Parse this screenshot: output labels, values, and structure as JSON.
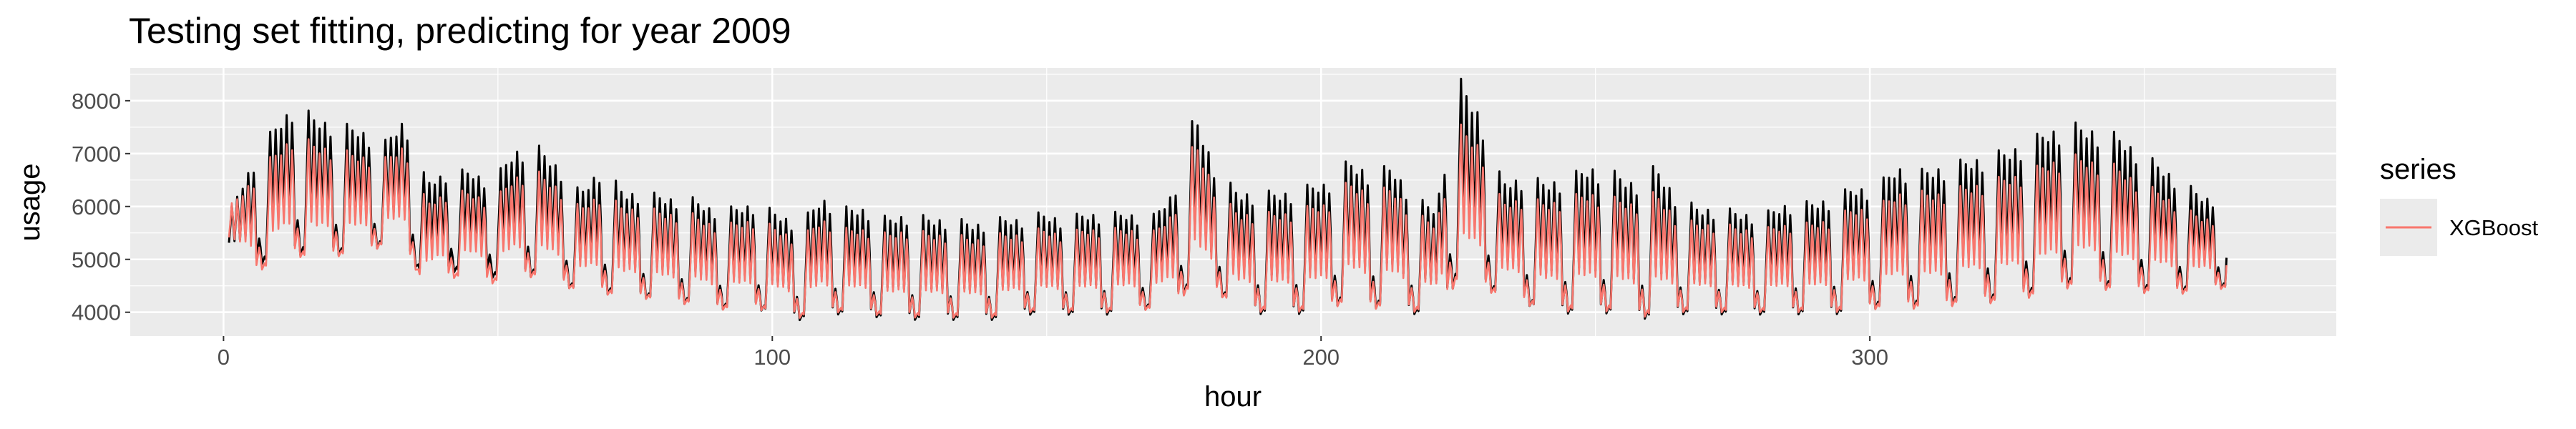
{
  "chart_data": {
    "type": "line",
    "title": "Testing set fitting, predicting for year 2009",
    "xlabel": "hour",
    "ylabel": "usage",
    "xlim": [
      -17,
      385
    ],
    "ylim": [
      3550,
      8620
    ],
    "x_ticks": [
      0,
      100,
      200,
      300
    ],
    "x_tick_labels": [
      "0",
      "100",
      "200",
      "300"
    ],
    "y_ticks": [
      4000,
      5000,
      6000,
      7000,
      8000
    ],
    "y_tick_labels": [
      "4000",
      "5000",
      "6000",
      "7000",
      "8000"
    ],
    "grid": true,
    "legend": {
      "title": "series",
      "placement": "right",
      "entries": [
        "XGBoost"
      ]
    },
    "series_x_range": [
      1,
      365
    ],
    "series": [
      {
        "role": "actual",
        "color": "#000000",
        "x_start": 1,
        "x_step": 4,
        "peaks": [
          5900,
          6800,
          7500,
          8000,
          7700,
          7600,
          7500,
          7200,
          7700,
          6500,
          6700,
          6700,
          6500,
          7100,
          7200,
          6800,
          6300,
          6800,
          6300,
          6300,
          6200,
          6200,
          6000,
          6000,
          6100,
          5900,
          5700,
          6200,
          6000,
          6000,
          5800,
          5900,
          5800,
          5800,
          5700,
          5800,
          5800,
          5900,
          5800,
          5900,
          5900,
          5900,
          5800,
          6300,
          7800,
          6700,
          6300,
          6300,
          6300,
          6400,
          6500,
          6900,
          6700,
          6800,
          6200,
          6000,
          8500,
          7800,
          6500,
          6600,
          6500,
          6600,
          6800,
          6700,
          6500,
          6800,
          6200,
          6000,
          6000,
          5900,
          5900,
          6100,
          6100,
          6200,
          6400,
          6400,
          6800,
          6700,
          6800,
          6900,
          7000,
          7100,
          7300,
          7500,
          7600,
          7500,
          7400,
          7100,
          6800,
          6500,
          6200
        ],
        "troughs": [
          5000,
          4800,
          4900,
          5000,
          5000,
          5000,
          5000,
          5200,
          5100,
          4500,
          4700,
          4700,
          4600,
          4600,
          4600,
          4500,
          4300,
          4300,
          4200,
          4200,
          4100,
          4100,
          4000,
          4000,
          4000,
          3900,
          3800,
          3900,
          3900,
          3900,
          3800,
          3800,
          3800,
          3800,
          3800,
          3800,
          3900,
          3900,
          3900,
          3900,
          3900,
          4000,
          4000,
          4100,
          4400,
          4300,
          4000,
          3900,
          3900,
          3900,
          4000,
          4100,
          4000,
          4000,
          3900,
          3900,
          4500,
          4400,
          4200,
          4100,
          3900,
          3900,
          3900,
          3900,
          3800,
          3800,
          3900,
          3900,
          3900,
          3900,
          3900,
          3900,
          3900,
          3900,
          3900,
          4000,
          4000,
          4000,
          4000,
          4100,
          4100,
          4100,
          4200,
          4300,
          4400,
          4400,
          4300,
          4300,
          4300,
          4300,
          4400
        ]
      },
      {
        "name": "XGBoost",
        "color": "#F8766D",
        "x_start": 1,
        "x_step": 4,
        "peaks": [
          6000,
          6500,
          7000,
          7400,
          7200,
          7100,
          7000,
          6900,
          7200,
          6100,
          6300,
          6300,
          6100,
          6600,
          6700,
          6400,
          6000,
          6300,
          6000,
          6000,
          5900,
          5900,
          5700,
          5700,
          5800,
          5600,
          5400,
          5800,
          5600,
          5600,
          5500,
          5600,
          5500,
          5500,
          5400,
          5500,
          5500,
          5600,
          5500,
          5600,
          5600,
          5600,
          5500,
          5900,
          7300,
          6300,
          5900,
          5900,
          5900,
          6000,
          6100,
          6500,
          6300,
          6400,
          5900,
          5700,
          7600,
          7200,
          6100,
          6200,
          6100,
          6200,
          6300,
          6200,
          6100,
          6300,
          5800,
          5700,
          5700,
          5600,
          5600,
          5700,
          5700,
          5800,
          6000,
          6000,
          6300,
          6300,
          6300,
          6400,
          6500,
          6600,
          6700,
          6900,
          7000,
          6900,
          6800,
          6500,
          6300,
          6000,
          5800
        ],
        "troughs": [
          5100,
          4700,
          4800,
          5000,
          4900,
          5000,
          5000,
          5200,
          5100,
          4400,
          4600,
          4600,
          4500,
          4600,
          4600,
          4500,
          4300,
          4300,
          4200,
          4200,
          4100,
          4100,
          4000,
          4000,
          4000,
          3950,
          3850,
          3950,
          3950,
          3950,
          3850,
          3850,
          3850,
          3850,
          3850,
          3850,
          3950,
          3950,
          3950,
          3950,
          3950,
          4000,
          4000,
          4100,
          4400,
          4300,
          4000,
          3950,
          3950,
          3950,
          4000,
          4100,
          4000,
          4000,
          3950,
          3950,
          4500,
          4400,
          4200,
          4100,
          3950,
          3950,
          3950,
          3950,
          3850,
          3850,
          3950,
          3950,
          3950,
          3950,
          3950,
          3950,
          3950,
          3950,
          3950,
          4000,
          4000,
          4000,
          4000,
          4100,
          4100,
          4100,
          4200,
          4300,
          4400,
          4400,
          4300,
          4300,
          4300,
          4300,
          4400
        ]
      }
    ]
  }
}
